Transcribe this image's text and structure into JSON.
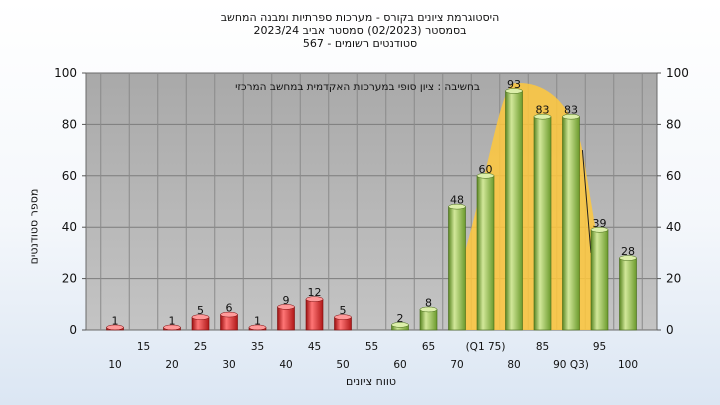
{
  "chart_data": {
    "type": "bar",
    "title_lines": [
      "היסטוגרמת ציונים בקורס - מערכות ספרתיות ומבנה המחשב",
      "בסמסטר  (02/2023)  סמסטר אביב 2023/24",
      "סטודנטים רשומים - 567"
    ],
    "annotation": "בחשיבה : ציון סופי במערכות האקדמית במחשב המרכזי",
    "ylabel": "מספר סטודנטים",
    "xlabel": "טווח ציונים",
    "ylim": [
      0,
      100
    ],
    "yticks": [
      0,
      20,
      40,
      60,
      80,
      100
    ],
    "x_labels": [
      {
        "text": "10",
        "row": 2
      },
      {
        "text": "15",
        "row": 1
      },
      {
        "text": "20",
        "row": 2
      },
      {
        "text": "25",
        "row": 1
      },
      {
        "text": "30",
        "row": 2
      },
      {
        "text": "35",
        "row": 1
      },
      {
        "text": "40",
        "row": 2
      },
      {
        "text": "45",
        "row": 1
      },
      {
        "text": "50",
        "row": 2
      },
      {
        "text": "55",
        "row": 1
      },
      {
        "text": "60",
        "row": 2
      },
      {
        "text": "65",
        "row": 1
      },
      {
        "text": "70",
        "row": 2
      },
      {
        "text": "(Q1 75)",
        "row": 1
      },
      {
        "text": "80",
        "row": 2
      },
      {
        "text": "85",
        "row": 1
      },
      {
        "text": "90 Q3)",
        "row": 2
      },
      {
        "text": "95",
        "row": 1
      },
      {
        "text": "100",
        "row": 2
      }
    ],
    "bins": [
      {
        "value": 1,
        "label": "1",
        "color": "red"
      },
      {
        "value": 0,
        "label": "",
        "color": "red"
      },
      {
        "value": 1,
        "label": "1",
        "color": "red"
      },
      {
        "value": 5,
        "label": "5",
        "color": "red"
      },
      {
        "value": 6,
        "label": "6",
        "color": "red"
      },
      {
        "value": 1,
        "label": "1",
        "color": "red"
      },
      {
        "value": 9,
        "label": "9",
        "color": "red"
      },
      {
        "value": 12,
        "label": "12",
        "color": "red"
      },
      {
        "value": 5,
        "label": "5",
        "color": "red"
      },
      {
        "value": 0,
        "label": "",
        "color": "green"
      },
      {
        "value": 2,
        "label": "2",
        "color": "green"
      },
      {
        "value": 8,
        "label": "8",
        "color": "green"
      },
      {
        "value": 48,
        "label": "48",
        "color": "green"
      },
      {
        "value": 60,
        "label": "60",
        "color": "green"
      },
      {
        "value": 93,
        "label": "93",
        "color": "green"
      },
      {
        "value": 83,
        "label": "83",
        "color": "green"
      },
      {
        "value": 83,
        "label": "83",
        "color": "green"
      },
      {
        "value": 39,
        "label": "39",
        "color": "green"
      },
      {
        "value": 28,
        "label": "28",
        "color": "green"
      }
    ],
    "colors": {
      "plot_bg": "#b4b4b4",
      "grid": "#7a7a7a",
      "red_light": "#ff6a6a",
      "red_dark": "#a81616",
      "green_light": "#c8e08c",
      "green_dark": "#5f8a26",
      "highlight": "#ffc83c"
    }
  }
}
